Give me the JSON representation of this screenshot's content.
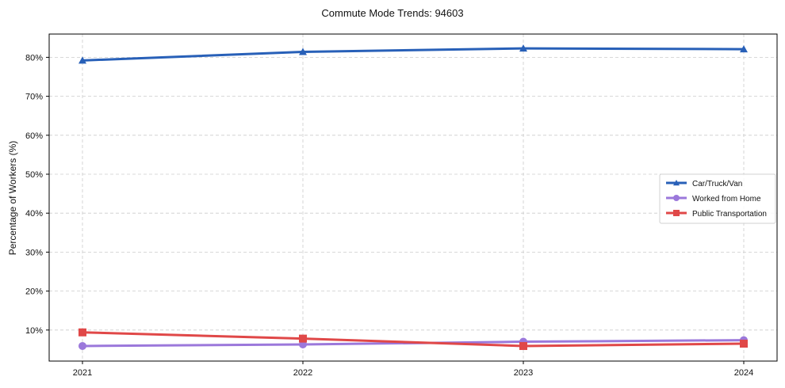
{
  "chart_data": {
    "type": "line",
    "title": "Commute Mode Trends: 94603",
    "xlabel": "",
    "ylabel": "Percentage of Workers (%)",
    "x": [
      "2021",
      "2022",
      "2023",
      "2024"
    ],
    "yticks": [
      "10%",
      "20%",
      "30%",
      "40%",
      "50%",
      "60%",
      "70%",
      "80%"
    ],
    "ylim": [
      2,
      86
    ],
    "grid": true,
    "legend_position": "center right",
    "series": [
      {
        "name": "Car/Truck/Van",
        "color": "#2860b8",
        "marker": "triangle",
        "values": [
          79.2,
          81.4,
          82.3,
          82.1
        ]
      },
      {
        "name": "Worked from Home",
        "color": "#9b78db",
        "marker": "circle",
        "values": [
          5.9,
          6.3,
          7.0,
          7.4
        ]
      },
      {
        "name": "Public Transportation",
        "color": "#e04848",
        "marker": "square",
        "values": [
          9.4,
          7.8,
          5.9,
          6.5
        ]
      }
    ]
  }
}
